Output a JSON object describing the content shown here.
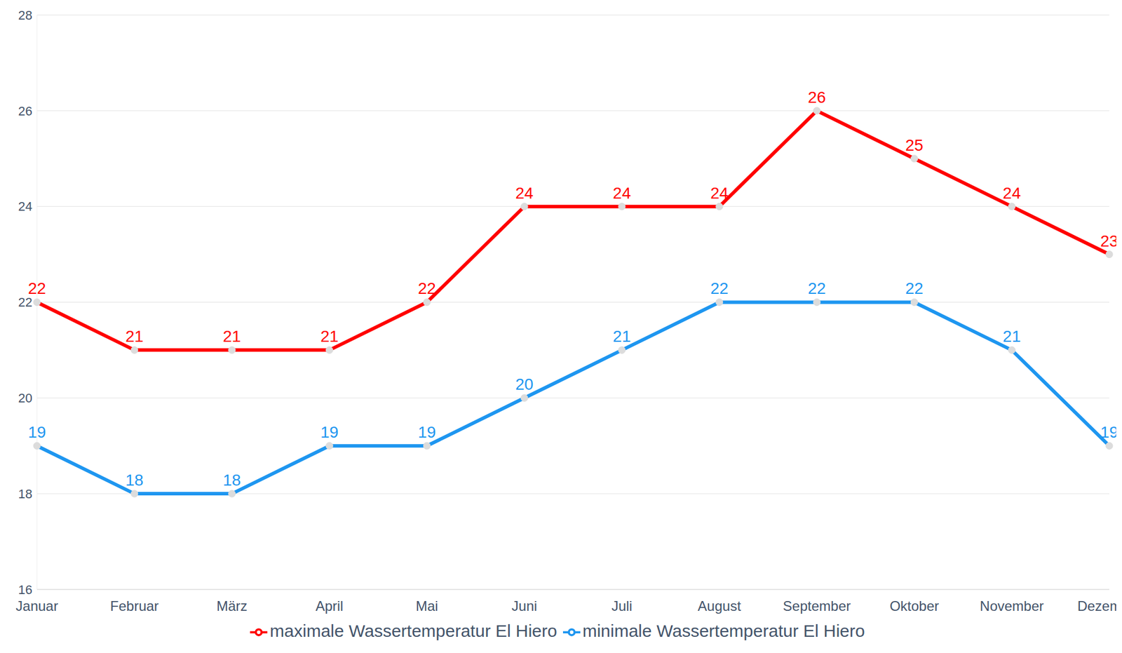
{
  "chart_data": {
    "type": "line",
    "categories": [
      "Januar",
      "Februar",
      "März",
      "April",
      "Mai",
      "Juni",
      "Juli",
      "August",
      "September",
      "Oktober",
      "November",
      "Dezember"
    ],
    "series": [
      {
        "name": "minimale Wassertemperatur El Hiero",
        "color": "#1e96f0",
        "marker": "circle",
        "values": [
          19,
          18,
          18,
          19,
          19,
          20,
          21,
          22,
          22,
          22,
          21,
          19
        ]
      },
      {
        "name": "maximale Wassertemperatur El Hiero",
        "color": "#ff0000",
        "marker": "circle",
        "values": [
          22,
          21,
          21,
          21,
          22,
          24,
          24,
          24,
          26,
          25,
          24,
          23
        ]
      }
    ],
    "ylim": [
      16,
      28
    ],
    "yticks": [
      16,
      18,
      20,
      22,
      24,
      26,
      28
    ],
    "grid": true,
    "legend": "bottom",
    "data_labels": true
  }
}
